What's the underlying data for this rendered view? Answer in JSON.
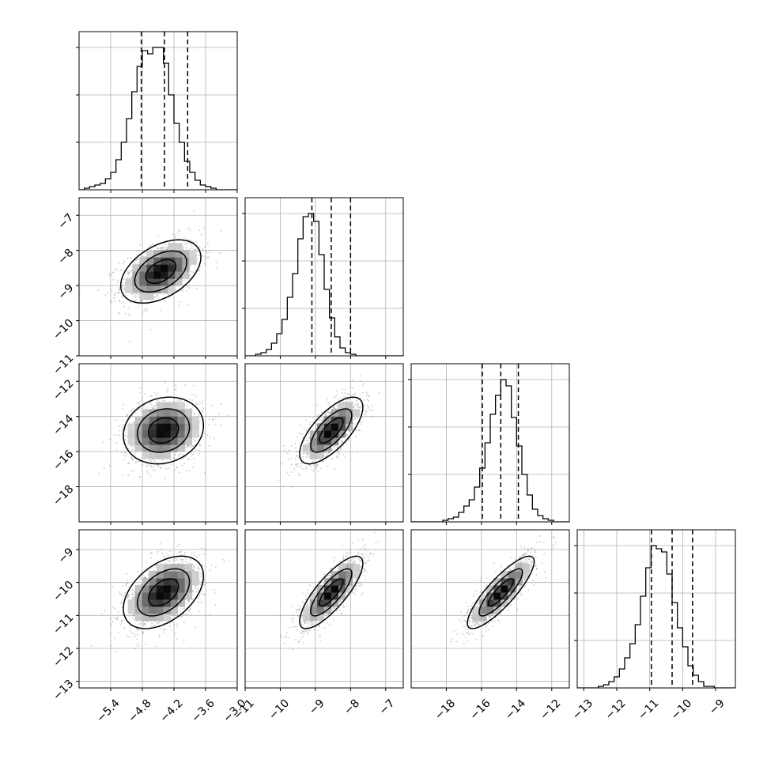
{
  "chart_data": {
    "type": "corner",
    "parameters": 4,
    "grid": true,
    "quantile_lines": [
      0.16,
      0.5,
      0.84
    ],
    "ranges": [
      [
        -6.0,
        -3.0
      ],
      [
        -11.0,
        -6.5
      ],
      [
        -20.0,
        -11.0
      ],
      [
        -13.2,
        -8.4
      ]
    ],
    "ticks": [
      {
        "values": [
          -5.4,
          -4.8,
          -4.2,
          -3.6,
          -3.0
        ],
        "labels": [
          "−5.4",
          "−4.8",
          "−4.2",
          "−3.6",
          "−3.0"
        ]
      },
      {
        "values": [
          -11,
          -10,
          -9,
          -8,
          -7
        ],
        "labels": [
          "−11",
          "−10",
          "−9",
          "−8",
          "−7"
        ]
      },
      {
        "values": [
          -18,
          -16,
          -14,
          -12
        ],
        "labels": [
          "−18",
          "−16",
          "−14",
          "−12"
        ]
      },
      {
        "values": [
          -13,
          -12,
          -11,
          -10,
          -9
        ],
        "labels": [
          "−13",
          "−12",
          "−11",
          "−10",
          "−9"
        ]
      }
    ],
    "marginals": [
      {
        "bin_start": -6.0,
        "bin_width": 0.1,
        "counts": [
          0,
          1,
          2,
          3,
          4,
          7,
          11,
          19,
          30,
          45,
          62,
          78,
          88,
          86,
          90,
          90,
          80,
          60,
          42,
          30,
          18,
          11,
          6,
          3,
          2,
          1,
          0,
          0,
          0,
          0
        ],
        "quantiles": [
          -4.82,
          -4.38,
          -3.94
        ]
      },
      {
        "bin_start": -11.0,
        "bin_width": 0.15,
        "counts": [
          0,
          0,
          1,
          2,
          4,
          8,
          14,
          23,
          37,
          52,
          74,
          88,
          90,
          85,
          64,
          42,
          24,
          12,
          5,
          2,
          1,
          0,
          0,
          0,
          0,
          0,
          0,
          0,
          0,
          0
        ],
        "quantiles": [
          -9.1,
          -8.55,
          -8.0
        ]
      },
      {
        "bin_start": -20.0,
        "bin_width": 0.3,
        "counts": [
          0,
          0,
          0,
          0,
          0,
          0,
          1,
          2,
          3,
          6,
          10,
          14,
          22,
          34,
          50,
          68,
          80,
          90,
          86,
          66,
          48,
          30,
          17,
          8,
          4,
          2,
          1,
          0,
          0,
          0
        ],
        "quantiles": [
          -15.95,
          -14.9,
          -13.9
        ]
      },
      {
        "bin_start": -13.2,
        "bin_width": 0.16,
        "counts": [
          0,
          0,
          0,
          0,
          1,
          2,
          4,
          7,
          12,
          19,
          28,
          40,
          58,
          76,
          90,
          88,
          86,
          72,
          54,
          38,
          26,
          14,
          8,
          4,
          1,
          1,
          0,
          0,
          0,
          0
        ],
        "quantiles": [
          -10.95,
          -10.32,
          -9.7
        ]
      }
    ],
    "pairs": [
      {
        "row": 1,
        "col": 0,
        "center": [
          -4.45,
          -8.6
        ],
        "sd": [
          0.38,
          0.45
        ],
        "rho": 0.45
      },
      {
        "row": 2,
        "col": 0,
        "center": [
          -4.4,
          -14.8
        ],
        "sd": [
          0.38,
          0.95
        ],
        "rho": 0.15
      },
      {
        "row": 2,
        "col": 1,
        "center": [
          -8.55,
          -14.8
        ],
        "sd": [
          0.45,
          0.95
        ],
        "rho": 0.7
      },
      {
        "row": 3,
        "col": 0,
        "center": [
          -4.4,
          -10.3
        ],
        "sd": [
          0.38,
          0.55
        ],
        "rho": 0.45
      },
      {
        "row": 3,
        "col": 1,
        "center": [
          -8.55,
          -10.3
        ],
        "sd": [
          0.45,
          0.55
        ],
        "rho": 0.8
      },
      {
        "row": 3,
        "col": 2,
        "center": [
          -14.9,
          -10.3
        ],
        "sd": [
          0.95,
          0.55
        ],
        "rho": 0.85
      }
    ]
  }
}
